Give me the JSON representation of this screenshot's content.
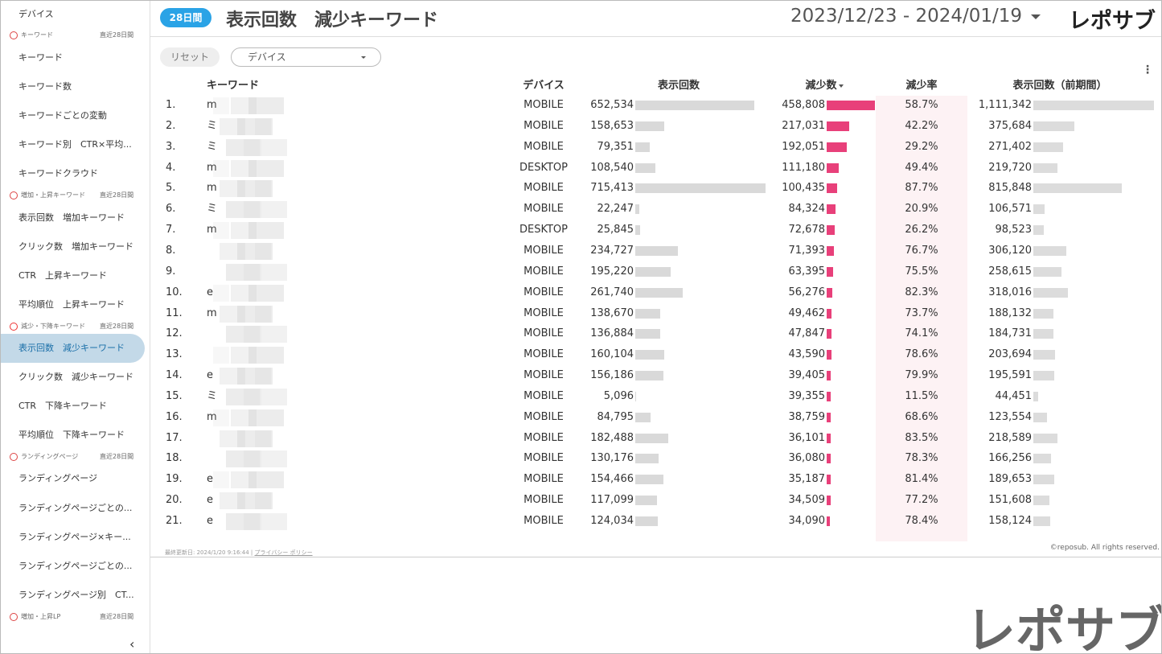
{
  "header": {
    "badge": "28日間",
    "title": "表示回数　減少キーワード",
    "date_range": "2023/12/23 - 2024/01/19",
    "logo": "レポサブ"
  },
  "sidebar": {
    "items": [
      {
        "label": "デバイス"
      },
      {
        "label": "キーワード",
        "period": "直近28日間"
      },
      {
        "label": "キーワード"
      },
      {
        "label": "キーワード数"
      },
      {
        "label": "キーワードごとの変動"
      },
      {
        "label": "キーワード別　CTR×平均..."
      },
      {
        "label": "キーワードクラウド"
      },
      {
        "label": "増加・上昇キーワード",
        "period": "直近28日間"
      },
      {
        "label": "表示回数　増加キーワード"
      },
      {
        "label": "クリック数　増加キーワード"
      },
      {
        "label": "CTR　上昇キーワード"
      },
      {
        "label": "平均順位　上昇キーワード"
      },
      {
        "label": "減少・下降キーワード",
        "period": "直近28日間"
      },
      {
        "label": "表示回数　減少キーワード",
        "active": true
      },
      {
        "label": "クリック数　減少キーワード"
      },
      {
        "label": "CTR　下降キーワード"
      },
      {
        "label": "平均順位　下降キーワード"
      },
      {
        "label": "ランディングページ",
        "period": "直近28日間"
      },
      {
        "label": "ランディングページ"
      },
      {
        "label": "ランディングページごとの..."
      },
      {
        "label": "ランディングページ×キー..."
      },
      {
        "label": "ランディングページごとの..."
      },
      {
        "label": "ランディングページ別　CT..."
      },
      {
        "label": "増加・上昇LP",
        "period": "直近28日間"
      }
    ]
  },
  "filters": {
    "reset": "リセット",
    "device": "デバイス"
  },
  "table": {
    "columns": [
      "キーワード",
      "デバイス",
      "表示回数",
      "減少数",
      "減少率",
      "表示回数（前期間）"
    ],
    "rows": [
      [
        "1.",
        "m",
        "MOBILE",
        {
          "value": 652534,
          "label": "652,534"
        },
        {
          "value": 458808,
          "label": "458,808"
        },
        "58.7%",
        {
          "value": 1111342,
          "label": "1,111,342"
        }
      ],
      [
        "2.",
        "ミ",
        "MOBILE",
        {
          "value": 158653,
          "label": "158,653"
        },
        {
          "value": 217031,
          "label": "217,031"
        },
        "42.2%",
        {
          "value": 375684,
          "label": "375,684"
        }
      ],
      [
        "3.",
        "ミ",
        "MOBILE",
        {
          "value": 79351,
          "label": "79,351"
        },
        {
          "value": 192051,
          "label": "192,051"
        },
        "29.2%",
        {
          "value": 271402,
          "label": "271,402"
        }
      ],
      [
        "4.",
        "m",
        "DESKTOP",
        {
          "value": 108540,
          "label": "108,540"
        },
        {
          "value": 111180,
          "label": "111,180"
        },
        "49.4%",
        {
          "value": 219720,
          "label": "219,720"
        }
      ],
      [
        "5.",
        "m",
        "MOBILE",
        {
          "value": 715413,
          "label": "715,413"
        },
        {
          "value": 100435,
          "label": "100,435"
        },
        "87.7%",
        {
          "value": 815848,
          "label": "815,848"
        }
      ],
      [
        "6.",
        "ミ",
        "MOBILE",
        {
          "value": 22247,
          "label": "22,247"
        },
        {
          "value": 84324,
          "label": "84,324"
        },
        "20.9%",
        {
          "value": 106571,
          "label": "106,571"
        }
      ],
      [
        "7.",
        "m",
        "DESKTOP",
        {
          "value": 25845,
          "label": "25,845"
        },
        {
          "value": 72678,
          "label": "72,678"
        },
        "26.2%",
        {
          "value": 98523,
          "label": "98,523"
        }
      ],
      [
        "8.",
        null,
        "MOBILE",
        {
          "value": 234727,
          "label": "234,727"
        },
        {
          "value": 71393,
          "label": "71,393"
        },
        "76.7%",
        {
          "value": 306120,
          "label": "306,120"
        }
      ],
      [
        "9.",
        null,
        "MOBILE",
        {
          "value": 195220,
          "label": "195,220"
        },
        {
          "value": 63395,
          "label": "63,395"
        },
        "75.5%",
        {
          "value": 258615,
          "label": "258,615"
        }
      ],
      [
        "10.",
        "e",
        "MOBILE",
        {
          "value": 261740,
          "label": "261,740"
        },
        {
          "value": 56276,
          "label": "56,276"
        },
        "82.3%",
        {
          "value": 318016,
          "label": "318,016"
        }
      ],
      [
        "11.",
        "m",
        "MOBILE",
        {
          "value": 138670,
          "label": "138,670"
        },
        {
          "value": 49462,
          "label": "49,462"
        },
        "73.7%",
        {
          "value": 188132,
          "label": "188,132"
        }
      ],
      [
        "12.",
        null,
        "MOBILE",
        {
          "value": 136884,
          "label": "136,884"
        },
        {
          "value": 47847,
          "label": "47,847"
        },
        "74.1%",
        {
          "value": 184731,
          "label": "184,731"
        }
      ],
      [
        "13.",
        null,
        "MOBILE",
        {
          "value": 160104,
          "label": "160,104"
        },
        {
          "value": 43590,
          "label": "43,590"
        },
        "78.6%",
        {
          "value": 203694,
          "label": "203,694"
        }
      ],
      [
        "14.",
        "e",
        "MOBILE",
        {
          "value": 156186,
          "label": "156,186"
        },
        {
          "value": 39405,
          "label": "39,405"
        },
        "79.9%",
        {
          "value": 195591,
          "label": "195,591"
        }
      ],
      [
        "15.",
        "ミ",
        "MOBILE",
        {
          "value": 5096,
          "label": "5,096"
        },
        {
          "value": 39355,
          "label": "39,355"
        },
        "11.5%",
        {
          "value": 44451,
          "label": "44,451"
        }
      ],
      [
        "16.",
        "m",
        "MOBILE",
        {
          "value": 84795,
          "label": "84,795"
        },
        {
          "value": 38759,
          "label": "38,759"
        },
        "68.6%",
        {
          "value": 123554,
          "label": "123,554"
        }
      ],
      [
        "17.",
        null,
        "MOBILE",
        {
          "value": 182488,
          "label": "182,488"
        },
        {
          "value": 36101,
          "label": "36,101"
        },
        "83.5%",
        {
          "value": 218589,
          "label": "218,589"
        }
      ],
      [
        "18.",
        null,
        "MOBILE",
        {
          "value": 130176,
          "label": "130,176"
        },
        {
          "value": 36080,
          "label": "36,080"
        },
        "78.3%",
        {
          "value": 166256,
          "label": "166,256"
        }
      ],
      [
        "19.",
        "e",
        "MOBILE",
        {
          "value": 154466,
          "label": "154,466"
        },
        {
          "value": 35187,
          "label": "35,187"
        },
        "81.4%",
        {
          "value": 189653,
          "label": "189,653"
        }
      ],
      [
        "20.",
        "e",
        "MOBILE",
        {
          "value": 117099,
          "label": "117,099"
        },
        {
          "value": 34509,
          "label": "34,509"
        },
        "77.2%",
        {
          "value": 151608,
          "label": "151,608"
        }
      ],
      [
        "21.",
        "e",
        "MOBILE",
        {
          "value": 124034,
          "label": "124,034"
        },
        {
          "value": 34090,
          "label": "34,090"
        },
        "78.4%",
        {
          "value": 158124,
          "label": "158,124"
        }
      ]
    ]
  },
  "footer": {
    "updated": "最終更新日: 2024/1/20 9:16:44",
    "privacy": "プライバシー ポリシー",
    "copyright": "©reposub. All rights reserved.",
    "brand": "レポサブ"
  }
}
